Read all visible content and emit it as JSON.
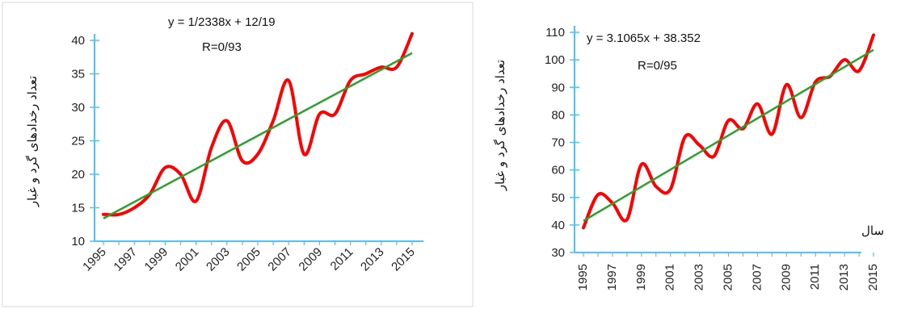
{
  "chart_data": [
    {
      "type": "line",
      "xlabel": "",
      "ylabel": "تعداد رخدادهای گرد و غبار",
      "equation": "y = 1/2338x + 12/19",
      "r_value": "R=0/93",
      "ylim": [
        10,
        40
      ],
      "yticks": [
        10,
        15,
        20,
        25,
        30,
        35,
        40
      ],
      "x": [
        1995,
        1996,
        1997,
        1998,
        1999,
        2000,
        2001,
        2002,
        2003,
        2004,
        2005,
        2006,
        2007,
        2008,
        2009,
        2010,
        2011,
        2012,
        2013,
        2014,
        2015
      ],
      "xtick_labels": [
        "1995",
        "1997",
        "1999",
        "2001",
        "2003",
        "2005",
        "2007",
        "2009",
        "2011",
        "2013",
        "2015"
      ],
      "series": [
        {
          "values": [
            14,
            14,
            15,
            17,
            21,
            20,
            16,
            24,
            28,
            22,
            23,
            28,
            34,
            23,
            29,
            29,
            34,
            35,
            36,
            36,
            41
          ],
          "color": "#ff0000"
        }
      ],
      "trendline": {
        "start": 13.4,
        "end": 38.1,
        "color": "#2ca02c"
      },
      "axis_color": "#4fc3f7"
    },
    {
      "type": "line",
      "xlabel": "سال",
      "ylabel": "تعداد رخدادهای گرد و غبار",
      "equation": "y = 3.1065x + 38.352",
      "r_value": "R=0/95",
      "ylim": [
        30,
        110
      ],
      "yticks": [
        30,
        40,
        50,
        60,
        70,
        80,
        90,
        100,
        110
      ],
      "x": [
        1995,
        1996,
        1997,
        1998,
        1999,
        2000,
        2001,
        2002,
        2003,
        2004,
        2005,
        2006,
        2007,
        2008,
        2009,
        2010,
        2011,
        2012,
        2013,
        2014,
        2015
      ],
      "xtick_labels": [
        "1995",
        "1997",
        "1999",
        "2001",
        "2003",
        "2005",
        "2007",
        "2009",
        "2011",
        "2013",
        "2015"
      ],
      "series": [
        {
          "values": [
            39,
            51,
            48,
            42,
            62,
            54,
            53,
            72,
            69,
            65,
            78,
            75,
            84,
            73,
            91,
            79,
            92,
            94,
            100,
            96,
            109
          ],
          "color": "#ff0000"
        }
      ],
      "trendline": {
        "start": 41.5,
        "end": 103.6,
        "color": "#2ca02c"
      },
      "axis_color": "#4fc3f7"
    }
  ]
}
